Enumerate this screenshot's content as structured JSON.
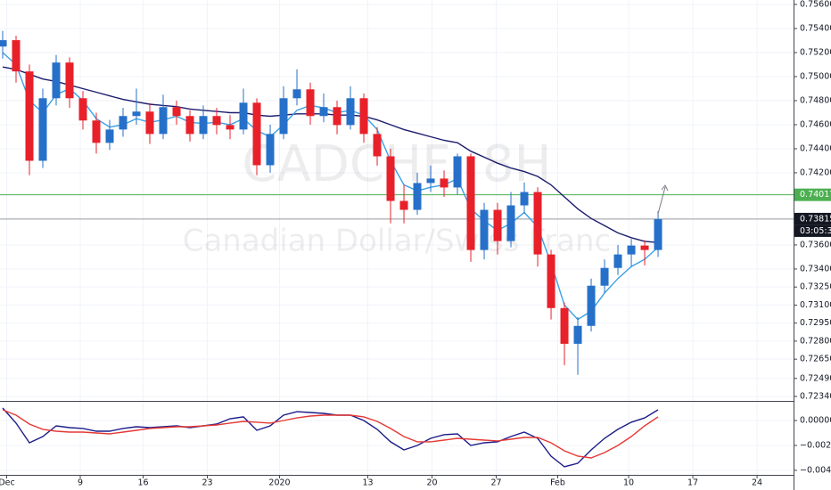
{
  "chart_data": [
    {
      "type": "candlestick",
      "title": "CADCHF, 8H",
      "subtitle": "Canadian Dollar/Swiss Franc",
      "up_color": "#2670c9",
      "down_color": "#e8202a",
      "ohlc": [
        [
          0.7525,
          0.7538,
          0.7515,
          0.75303
        ],
        [
          0.75303,
          0.7534,
          0.7495,
          0.75043
        ],
        [
          0.75043,
          0.751,
          0.7418,
          0.743
        ],
        [
          0.743,
          0.749,
          0.7424,
          0.7482
        ],
        [
          0.7482,
          0.7518,
          0.7476,
          0.75117
        ],
        [
          0.75117,
          0.7516,
          0.7474,
          0.7482
        ],
        [
          0.7482,
          0.7488,
          0.7456,
          0.74635
        ],
        [
          0.74635,
          0.747,
          0.7436,
          0.74449
        ],
        [
          0.74449,
          0.7464,
          0.7439,
          0.7456
        ],
        [
          0.7456,
          0.7474,
          0.745,
          0.74672
        ],
        [
          0.74672,
          0.749,
          0.746,
          0.74709
        ],
        [
          0.74709,
          0.7478,
          0.7444,
          0.74523
        ],
        [
          0.74523,
          0.7485,
          0.7448,
          0.74746
        ],
        [
          0.74746,
          0.748,
          0.746,
          0.74672
        ],
        [
          0.74672,
          0.7472,
          0.7446,
          0.74523
        ],
        [
          0.74523,
          0.7476,
          0.7448,
          0.74672
        ],
        [
          0.74672,
          0.7474,
          0.7452,
          0.74597
        ],
        [
          0.74597,
          0.7468,
          0.7448,
          0.7456
        ],
        [
          0.7456,
          0.749,
          0.7452,
          0.74783
        ],
        [
          0.74783,
          0.7482,
          0.7418,
          0.74263
        ],
        [
          0.74263,
          0.746,
          0.742,
          0.74523
        ],
        [
          0.74523,
          0.7492,
          0.7448,
          0.7482
        ],
        [
          0.7482,
          0.7506,
          0.7476,
          0.74894
        ],
        [
          0.74894,
          0.7495,
          0.746,
          0.74672
        ],
        [
          0.74672,
          0.7486,
          0.7462,
          0.74746
        ],
        [
          0.74746,
          0.748,
          0.7452,
          0.74597
        ],
        [
          0.74597,
          0.7492,
          0.7456,
          0.7482
        ],
        [
          0.7482,
          0.7486,
          0.7445,
          0.74523
        ],
        [
          0.74523,
          0.7458,
          0.7426,
          0.74337
        ],
        [
          0.74337,
          0.744,
          0.7378,
          0.73966
        ],
        [
          0.73966,
          0.741,
          0.7378,
          0.73892
        ],
        [
          0.73892,
          0.742,
          0.7385,
          0.74115
        ],
        [
          0.74115,
          0.7426,
          0.7404,
          0.74152
        ],
        [
          0.74152,
          0.7422,
          0.74,
          0.74078
        ],
        [
          0.74078,
          0.7436,
          0.7402,
          0.74337
        ],
        [
          0.74337,
          0.7436,
          0.7346,
          0.73558
        ],
        [
          0.73558,
          0.7395,
          0.7348,
          0.73892
        ],
        [
          0.73892,
          0.7395,
          0.7352,
          0.73632
        ],
        [
          0.73632,
          0.7404,
          0.7358,
          0.73929
        ],
        [
          0.73929,
          0.7412,
          0.7386,
          0.7404
        ],
        [
          0.7404,
          0.7408,
          0.7342,
          0.73521
        ],
        [
          0.73521,
          0.7356,
          0.7298,
          0.73075
        ],
        [
          0.73075,
          0.7312,
          0.726,
          0.72778
        ],
        [
          0.72778,
          0.73,
          0.7252,
          0.72927
        ],
        [
          0.72927,
          0.7332,
          0.7288,
          0.73261
        ],
        [
          0.73261,
          0.7348,
          0.732,
          0.73409
        ],
        [
          0.73409,
          0.736,
          0.7335,
          0.73521
        ],
        [
          0.73521,
          0.7365,
          0.7342,
          0.73595
        ],
        [
          0.73595,
          0.7364,
          0.7343,
          0.73558
        ],
        [
          0.73558,
          0.7388,
          0.735,
          0.73815
        ]
      ],
      "series": [
        {
          "color": "#1c1c6e",
          "values": [
            0.7508,
            0.7506,
            0.7502,
            0.7498,
            0.7496,
            0.7493,
            0.749,
            0.7487,
            0.7484,
            0.7481,
            0.7479,
            0.7477,
            0.7476,
            0.7475,
            0.7473,
            0.7472,
            0.7471,
            0.747,
            0.747,
            0.7468,
            0.7467,
            0.7468,
            0.7469,
            0.7469,
            0.7469,
            0.7468,
            0.7468,
            0.7467,
            0.7464,
            0.746,
            0.7456,
            0.7453,
            0.745,
            0.7447,
            0.7445,
            0.7438,
            0.7433,
            0.7428,
            0.7424,
            0.7421,
            0.7417,
            0.741,
            0.74,
            0.739,
            0.7382,
            0.7376,
            0.737,
            0.7366,
            0.7363,
            0.7362
          ]
        },
        {
          "color": "#3aa0e4",
          "values": [
            0.752,
            0.751,
            0.748,
            0.747,
            0.7485,
            0.749,
            0.748,
            0.7465,
            0.7458,
            0.746,
            0.7465,
            0.7462,
            0.7464,
            0.7467,
            0.7462,
            0.7461,
            0.7462,
            0.746,
            0.7465,
            0.7455,
            0.745,
            0.746,
            0.7472,
            0.7476,
            0.7474,
            0.747,
            0.7472,
            0.7468,
            0.7456,
            0.743,
            0.741,
            0.7405,
            0.7408,
            0.741,
            0.7415,
            0.739,
            0.738,
            0.7372,
            0.7378,
            0.7387,
            0.7375,
            0.7345,
            0.731,
            0.7298,
            0.7305,
            0.732,
            0.7332,
            0.7342,
            0.7348,
            0.7358
          ]
        }
      ],
      "price_lines": [
        {
          "value": 0.74017,
          "label": "0.74017",
          "color": "#4caf50"
        },
        {
          "value": 0.73815,
          "label": "0.73815",
          "color": "#9598a1"
        }
      ],
      "countdown": "03:05:31",
      "xlim": [
        -0.2,
        59.13
      ],
      "ylim": [
        0.72303,
        0.75637
      ],
      "yticks": [
        {
          "value": 0.756,
          "label": "0.75600"
        },
        {
          "value": 0.754,
          "label": "0.75400"
        },
        {
          "value": 0.752,
          "label": "0.75200"
        },
        {
          "value": 0.75,
          "label": "0.75000"
        },
        {
          "value": 0.748,
          "label": "0.74800"
        },
        {
          "value": 0.746,
          "label": "0.74600"
        },
        {
          "value": 0.744,
          "label": "0.74400"
        },
        {
          "value": 0.742,
          "label": "0.74200"
        },
        {
          "value": 0.736,
          "label": "0.73600"
        },
        {
          "value": 0.734,
          "label": "0.73400"
        },
        {
          "value": 0.7325,
          "label": "0.73250"
        },
        {
          "value": 0.731,
          "label": "0.73100"
        },
        {
          "value": 0.7295,
          "label": "0.72950"
        },
        {
          "value": 0.728,
          "label": "0.72800"
        },
        {
          "value": 0.7265,
          "label": "0.72650"
        },
        {
          "value": 0.7249,
          "label": "0.72490"
        },
        {
          "value": 0.7234,
          "label": "0.72340"
        }
      ],
      "grid": true
    },
    {
      "type": "line",
      "series": [
        {
          "color": "#1c1c8a",
          "values": [
            0.001,
            -0.00021,
            -0.00179,
            -0.00129,
            -0.00043,
            -0.00057,
            -0.00064,
            -0.00086,
            -0.00086,
            -0.00064,
            -0.0005,
            -0.00057,
            -0.0005,
            -0.00043,
            -0.00057,
            -0.00043,
            -0.00029,
            0.00014,
            0.00029,
            -0.00079,
            -0.00043,
            0.00043,
            0.00071,
            0.00064,
            0.00057,
            0.00043,
            0.00043,
            0.0,
            -0.00071,
            -0.00171,
            -0.00236,
            -0.002,
            -0.00143,
            -0.00114,
            -0.00107,
            -0.002,
            -0.00179,
            -0.00171,
            -0.00129,
            -0.00093,
            -0.00143,
            -0.00286,
            -0.00371,
            -0.00343,
            -0.00236,
            -0.00143,
            -0.00071,
            -0.00014,
            0.00021,
            0.00086
          ]
        },
        {
          "color": "#e53935",
          "values": [
            0.00086,
            0.00043,
            -0.00029,
            -0.00071,
            -0.00086,
            -0.00093,
            -0.00093,
            -0.001,
            -0.00107,
            -0.00093,
            -0.00079,
            -0.00064,
            -0.00057,
            -0.0005,
            -0.0005,
            -0.00043,
            -0.00036,
            -0.00021,
            -7e-05,
            -0.00014,
            -0.00021,
            0.0,
            0.00021,
            0.00036,
            0.00043,
            0.00043,
            0.00043,
            0.00029,
            -7e-05,
            -0.00064,
            -0.00129,
            -0.00171,
            -0.00171,
            -0.00157,
            -0.00143,
            -0.0015,
            -0.00157,
            -0.00164,
            -0.0015,
            -0.00136,
            -0.00136,
            -0.00179,
            -0.00243,
            -0.00286,
            -0.003,
            -0.00257,
            -0.002,
            -0.00129,
            -0.00043,
            0.00029
          ]
        }
      ],
      "xlim": [
        -0.2,
        59.13
      ],
      "ylim": [
        -0.00436,
        0.0015
      ],
      "yticks": [
        {
          "value": 0,
          "label": "0.00000"
        },
        {
          "value": -0.002,
          "label": "−0.00200"
        },
        {
          "value": -0.004,
          "label": "−0.00400"
        }
      ],
      "xticks": [
        {
          "value": 0.3,
          "label": "Dec"
        },
        {
          "value": 5.8,
          "label": "9"
        },
        {
          "value": 10.5,
          "label": "16"
        },
        {
          "value": 15.3,
          "label": "23"
        },
        {
          "value": 20.7,
          "label": "2020"
        },
        {
          "value": 27.3,
          "label": "13"
        },
        {
          "value": 32.1,
          "label": "20"
        },
        {
          "value": 36.9,
          "label": "27"
        },
        {
          "value": 41.5,
          "label": "Feb"
        },
        {
          "value": 46.8,
          "label": "10"
        },
        {
          "value": 51.6,
          "label": "17"
        },
        {
          "value": 56.4,
          "label": "24"
        }
      ],
      "grid": true
    }
  ]
}
